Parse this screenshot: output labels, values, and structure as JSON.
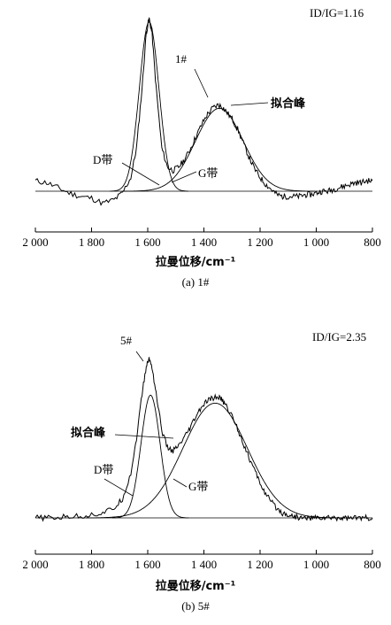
{
  "chart_data": [
    {
      "type": "line",
      "panel": "a",
      "caption": "(a) 1#",
      "xlabel": "拉曼位移/cm⁻¹",
      "xlim": [
        2000,
        800
      ],
      "x_reversed": true,
      "xticks": [
        "2 000",
        "1 800",
        "1 600",
        "1 400",
        "1 200",
        "1 000",
        "800"
      ],
      "xtick_values": [
        2000,
        1800,
        1600,
        1400,
        1200,
        1000,
        800
      ],
      "ratio_label": "ID/IG=1.16",
      "ratio_value": 1.16,
      "sample_label": "1#",
      "annotations": {
        "d_band": "D带",
        "g_band": "G带",
        "fitted_peak": "拟合峰"
      },
      "fit_components": [
        {
          "label": "D带",
          "center": 1595,
          "height": 0.98,
          "width": 35
        },
        {
          "label": "G带",
          "center": 1345,
          "height": 0.48,
          "width": 85
        }
      ],
      "spectrum": {
        "x": [
          2000,
          1960,
          1920,
          1880,
          1840,
          1800,
          1760,
          1720,
          1690,
          1660,
          1640,
          1620,
          1605,
          1595,
          1585,
          1570,
          1550,
          1530,
          1510,
          1490,
          1470,
          1450,
          1430,
          1410,
          1390,
          1370,
          1350,
          1335,
          1320,
          1300,
          1280,
          1260,
          1240,
          1220,
          1200,
          1180,
          1160,
          1140,
          1120,
          1100,
          1080,
          1060,
          1040,
          1020,
          1000,
          980,
          960,
          940,
          920,
          900,
          880,
          860,
          840,
          820,
          800
        ],
        "y": [
          0.06,
          0.05,
          0.02,
          -0.01,
          -0.03,
          -0.04,
          -0.07,
          -0.05,
          -0.01,
          0.08,
          0.25,
          0.6,
          0.92,
          1.0,
          0.92,
          0.6,
          0.25,
          0.14,
          0.12,
          0.14,
          0.18,
          0.24,
          0.31,
          0.38,
          0.44,
          0.48,
          0.5,
          0.49,
          0.46,
          0.42,
          0.36,
          0.28,
          0.2,
          0.13,
          0.08,
          0.04,
          0.01,
          -0.02,
          -0.03,
          -0.03,
          -0.03,
          -0.03,
          -0.02,
          -0.02,
          -0.01,
          0.0,
          0.0,
          0.01,
          0.02,
          0.03,
          0.04,
          0.05,
          0.05,
          0.06,
          0.06
        ]
      }
    },
    {
      "type": "line",
      "panel": "b",
      "caption": "(b) 5#",
      "xlabel": "拉曼位移/cm⁻¹",
      "xlim": [
        2000,
        800
      ],
      "x_reversed": true,
      "xticks": [
        "2 000",
        "1 800",
        "1 600",
        "1 400",
        "1 200",
        "1 000",
        "800"
      ],
      "xtick_values": [
        2000,
        1800,
        1600,
        1400,
        1200,
        1000,
        800
      ],
      "ratio_label": "ID/IG=2.35",
      "ratio_value": 2.35,
      "sample_label": "5#",
      "annotations": {
        "d_band": "D带",
        "g_band": "G带",
        "fitted_peak": "拟合峰"
      },
      "fit_components": [
        {
          "label": "D带",
          "center": 1590,
          "height": 0.77,
          "width": 34
        },
        {
          "label": "G带",
          "center": 1360,
          "height": 0.72,
          "width": 115
        }
      ],
      "spectrum": {
        "x": [
          2000,
          1960,
          1920,
          1880,
          1840,
          1800,
          1760,
          1720,
          1690,
          1660,
          1640,
          1620,
          1605,
          1595,
          1585,
          1570,
          1550,
          1530,
          1510,
          1490,
          1470,
          1450,
          1430,
          1410,
          1390,
          1370,
          1350,
          1335,
          1320,
          1300,
          1280,
          1260,
          1240,
          1220,
          1200,
          1180,
          1160,
          1140,
          1120,
          1100,
          1080,
          1060,
          1040,
          1020,
          1000,
          980,
          960,
          940,
          920,
          900,
          880,
          860,
          840,
          820,
          800
        ],
        "y": [
          0.0,
          0.0,
          0.0,
          0.01,
          0.01,
          0.02,
          0.03,
          0.06,
          0.12,
          0.28,
          0.5,
          0.78,
          0.95,
          1.0,
          0.95,
          0.78,
          0.55,
          0.44,
          0.42,
          0.45,
          0.5,
          0.56,
          0.63,
          0.69,
          0.73,
          0.75,
          0.76,
          0.74,
          0.7,
          0.64,
          0.56,
          0.47,
          0.38,
          0.3,
          0.22,
          0.15,
          0.1,
          0.06,
          0.03,
          0.02,
          0.01,
          0.0,
          0.0,
          0.0,
          0.0,
          0.0,
          0.0,
          0.0,
          0.0,
          0.0,
          0.0,
          0.0,
          0.0,
          0.0,
          0.0
        ]
      }
    }
  ]
}
